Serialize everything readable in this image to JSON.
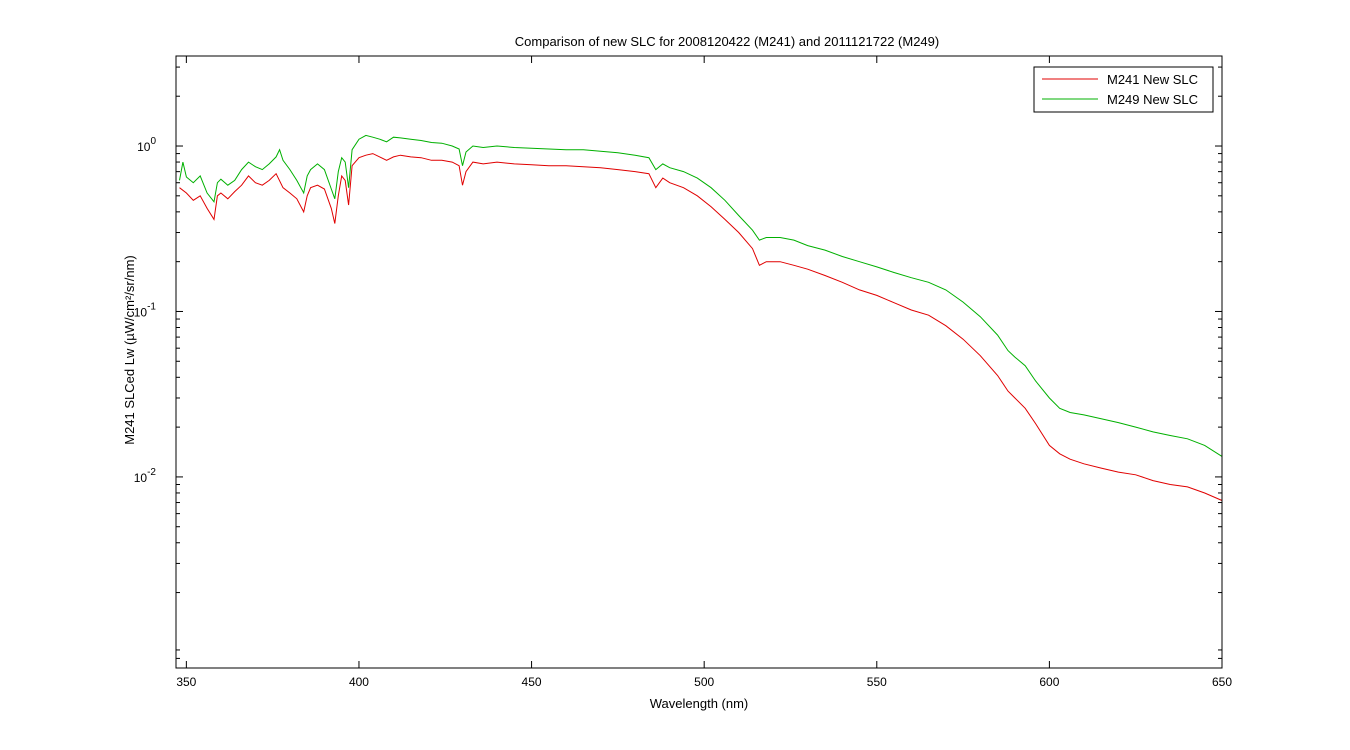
{
  "chart_data": {
    "type": "line",
    "title": "Comparison of new SLC for 2008120422  (M241)  and 2011121722  (M249)",
    "xlabel": "Wavelength (nm)",
    "ylabel": "M241 SLCed Lw (µW/cm²/sr/nm)",
    "xlim": [
      347,
      650
    ],
    "ylim": [
      0.0007,
      3.5
    ],
    "yscale": "log",
    "x_ticks": [
      350,
      400,
      450,
      500,
      550,
      600,
      650
    ],
    "y_ticks": [
      {
        "value": 1,
        "base": "10",
        "exp": "0"
      },
      {
        "value": 0.1,
        "base": "10",
        "exp": "-1"
      },
      {
        "value": 0.01,
        "base": "10",
        "exp": "-2"
      }
    ],
    "grid": false,
    "legend_position": "top-right",
    "series": [
      {
        "name": "M241 New SLC",
        "color": "#e00000",
        "points": [
          [
            348,
            0.56
          ],
          [
            350,
            0.52
          ],
          [
            352,
            0.47
          ],
          [
            354,
            0.5
          ],
          [
            356,
            0.42
          ],
          [
            358,
            0.36
          ],
          [
            359,
            0.5
          ],
          [
            360,
            0.52
          ],
          [
            362,
            0.48
          ],
          [
            364,
            0.53
          ],
          [
            366,
            0.58
          ],
          [
            368,
            0.66
          ],
          [
            370,
            0.6
          ],
          [
            372,
            0.58
          ],
          [
            374,
            0.62
          ],
          [
            376,
            0.68
          ],
          [
            378,
            0.56
          ],
          [
            380,
            0.52
          ],
          [
            382,
            0.48
          ],
          [
            384,
            0.4
          ],
          [
            385,
            0.5
          ],
          [
            386,
            0.56
          ],
          [
            388,
            0.58
          ],
          [
            390,
            0.55
          ],
          [
            392,
            0.42
          ],
          [
            393,
            0.34
          ],
          [
            394,
            0.5
          ],
          [
            395,
            0.66
          ],
          [
            396,
            0.62
          ],
          [
            397,
            0.44
          ],
          [
            398,
            0.76
          ],
          [
            400,
            0.85
          ],
          [
            402,
            0.88
          ],
          [
            404,
            0.9
          ],
          [
            406,
            0.86
          ],
          [
            408,
            0.82
          ],
          [
            410,
            0.86
          ],
          [
            412,
            0.88
          ],
          [
            415,
            0.86
          ],
          [
            418,
            0.85
          ],
          [
            421,
            0.82
          ],
          [
            424,
            0.82
          ],
          [
            427,
            0.8
          ],
          [
            429,
            0.76
          ],
          [
            430,
            0.58
          ],
          [
            431,
            0.7
          ],
          [
            433,
            0.8
          ],
          [
            436,
            0.78
          ],
          [
            440,
            0.8
          ],
          [
            445,
            0.78
          ],
          [
            450,
            0.77
          ],
          [
            455,
            0.76
          ],
          [
            460,
            0.76
          ],
          [
            465,
            0.75
          ],
          [
            470,
            0.74
          ],
          [
            475,
            0.72
          ],
          [
            480,
            0.7
          ],
          [
            484,
            0.68
          ],
          [
            486,
            0.56
          ],
          [
            488,
            0.64
          ],
          [
            490,
            0.6
          ],
          [
            494,
            0.56
          ],
          [
            498,
            0.5
          ],
          [
            502,
            0.43
          ],
          [
            506,
            0.36
          ],
          [
            510,
            0.3
          ],
          [
            514,
            0.24
          ],
          [
            516,
            0.19
          ],
          [
            518,
            0.2
          ],
          [
            522,
            0.2
          ],
          [
            526,
            0.19
          ],
          [
            530,
            0.18
          ],
          [
            535,
            0.165
          ],
          [
            540,
            0.15
          ],
          [
            545,
            0.135
          ],
          [
            550,
            0.125
          ],
          [
            555,
            0.113
          ],
          [
            560,
            0.102
          ],
          [
            565,
            0.095
          ],
          [
            570,
            0.082
          ],
          [
            575,
            0.068
          ],
          [
            580,
            0.054
          ],
          [
            585,
            0.041
          ],
          [
            588,
            0.033
          ],
          [
            590,
            0.03
          ],
          [
            593,
            0.026
          ],
          [
            596,
            0.021
          ],
          [
            600,
            0.0155
          ],
          [
            603,
            0.0138
          ],
          [
            606,
            0.0128
          ],
          [
            610,
            0.012
          ],
          [
            615,
            0.0113
          ],
          [
            620,
            0.0107
          ],
          [
            625,
            0.0103
          ],
          [
            630,
            0.0095
          ],
          [
            635,
            0.009
          ],
          [
            640,
            0.0087
          ],
          [
            645,
            0.008
          ],
          [
            650,
            0.0072
          ]
        ]
      },
      {
        "name": "M249 New SLC",
        "color": "#00b000",
        "points": [
          [
            348,
            0.62
          ],
          [
            349,
            0.8
          ],
          [
            350,
            0.65
          ],
          [
            352,
            0.6
          ],
          [
            354,
            0.66
          ],
          [
            356,
            0.52
          ],
          [
            358,
            0.46
          ],
          [
            359,
            0.6
          ],
          [
            360,
            0.63
          ],
          [
            362,
            0.58
          ],
          [
            364,
            0.62
          ],
          [
            366,
            0.72
          ],
          [
            368,
            0.8
          ],
          [
            370,
            0.75
          ],
          [
            372,
            0.72
          ],
          [
            374,
            0.78
          ],
          [
            376,
            0.86
          ],
          [
            377,
            0.95
          ],
          [
            378,
            0.82
          ],
          [
            380,
            0.72
          ],
          [
            382,
            0.62
          ],
          [
            384,
            0.52
          ],
          [
            385,
            0.66
          ],
          [
            386,
            0.72
          ],
          [
            388,
            0.78
          ],
          [
            390,
            0.72
          ],
          [
            392,
            0.55
          ],
          [
            393,
            0.48
          ],
          [
            394,
            0.7
          ],
          [
            395,
            0.85
          ],
          [
            396,
            0.8
          ],
          [
            397,
            0.56
          ],
          [
            398,
            0.95
          ],
          [
            400,
            1.1
          ],
          [
            402,
            1.16
          ],
          [
            404,
            1.13
          ],
          [
            406,
            1.1
          ],
          [
            408,
            1.06
          ],
          [
            410,
            1.13
          ],
          [
            412,
            1.12
          ],
          [
            415,
            1.1
          ],
          [
            418,
            1.08
          ],
          [
            421,
            1.05
          ],
          [
            424,
            1.04
          ],
          [
            427,
            1.0
          ],
          [
            429,
            0.96
          ],
          [
            430,
            0.76
          ],
          [
            431,
            0.92
          ],
          [
            433,
            1.0
          ],
          [
            436,
            0.98
          ],
          [
            440,
            1.0
          ],
          [
            445,
            0.98
          ],
          [
            450,
            0.97
          ],
          [
            455,
            0.96
          ],
          [
            460,
            0.95
          ],
          [
            465,
            0.95
          ],
          [
            470,
            0.93
          ],
          [
            475,
            0.91
          ],
          [
            480,
            0.88
          ],
          [
            484,
            0.85
          ],
          [
            486,
            0.72
          ],
          [
            488,
            0.78
          ],
          [
            490,
            0.74
          ],
          [
            494,
            0.7
          ],
          [
            498,
            0.64
          ],
          [
            502,
            0.56
          ],
          [
            506,
            0.47
          ],
          [
            510,
            0.38
          ],
          [
            514,
            0.31
          ],
          [
            516,
            0.27
          ],
          [
            518,
            0.28
          ],
          [
            522,
            0.28
          ],
          [
            526,
            0.27
          ],
          [
            530,
            0.25
          ],
          [
            535,
            0.235
          ],
          [
            540,
            0.215
          ],
          [
            545,
            0.2
          ],
          [
            550,
            0.186
          ],
          [
            555,
            0.172
          ],
          [
            560,
            0.16
          ],
          [
            565,
            0.15
          ],
          [
            570,
            0.135
          ],
          [
            575,
            0.114
          ],
          [
            580,
            0.093
          ],
          [
            585,
            0.072
          ],
          [
            588,
            0.058
          ],
          [
            590,
            0.053
          ],
          [
            593,
            0.047
          ],
          [
            596,
            0.038
          ],
          [
            600,
            0.03
          ],
          [
            603,
            0.026
          ],
          [
            606,
            0.0245
          ],
          [
            610,
            0.0237
          ],
          [
            615,
            0.0225
          ],
          [
            620,
            0.0213
          ],
          [
            625,
            0.02
          ],
          [
            630,
            0.0187
          ],
          [
            635,
            0.0178
          ],
          [
            640,
            0.017
          ],
          [
            645,
            0.0155
          ],
          [
            650,
            0.0133
          ]
        ]
      }
    ]
  }
}
